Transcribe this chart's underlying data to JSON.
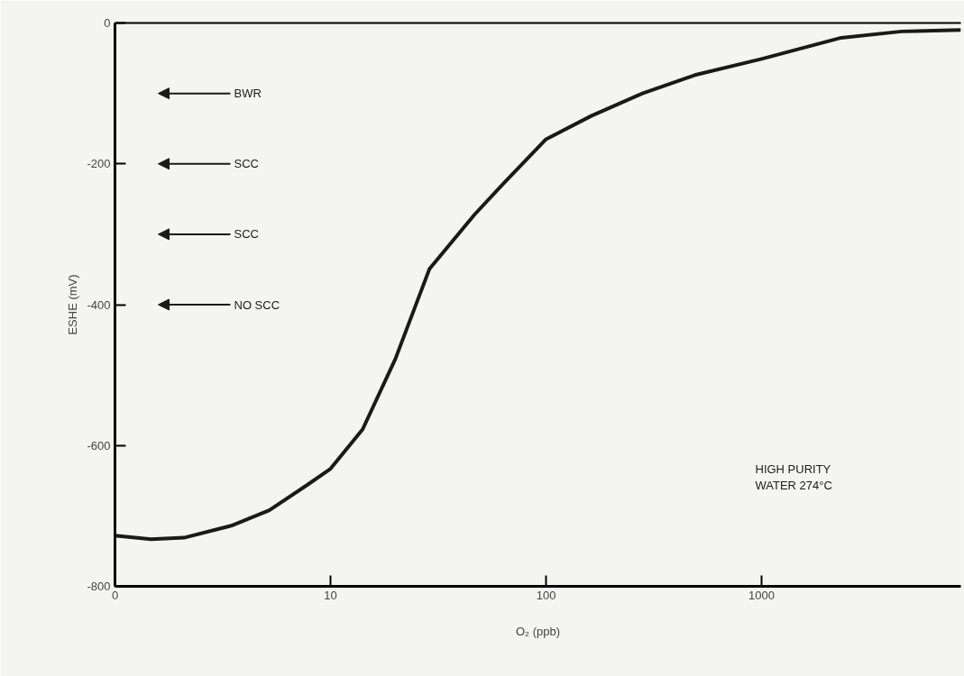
{
  "chart_data": {
    "type": "line",
    "xlabel": "O₂ (ppb)",
    "ylabel": "ESHE (mV)",
    "x": [
      1,
      1.47,
      2.09,
      3.46,
      5.2,
      7.8,
      10,
      14.1,
      20,
      28.8,
      46.6,
      63,
      100,
      162,
      280,
      490,
      1000,
      2340,
      4460,
      8400
    ],
    "series": [
      {
        "color": "#1a1a1a",
        "values": [
          -728,
          -733,
          -731,
          -714,
          -692,
          -656,
          -633,
          -577,
          -477,
          -349,
          -272,
          -229,
          -165,
          -132,
          -100,
          -74,
          -51,
          -21,
          -12,
          -10
        ]
      }
    ],
    "log": "x",
    "xlim": [
      0,
      8400
    ],
    "xticks": [
      0,
      10,
      100,
      1000
    ],
    "ylim": [
      -800,
      0
    ],
    "yticks": [
      0,
      -200,
      -400,
      -600,
      -800
    ],
    "grid": false,
    "marker": "none",
    "line_style": "solid",
    "annotations": [
      "BWR",
      "SCC",
      "SCC",
      "NO SCC",
      "HIGH PURITY\nWATER 274°C"
    ]
  }
}
